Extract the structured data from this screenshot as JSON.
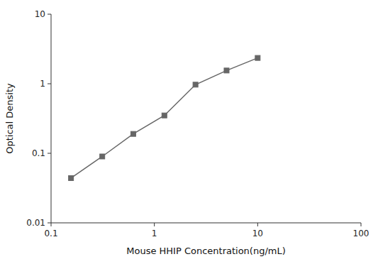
{
  "chart_data": {
    "type": "line",
    "x": [
      0.156,
      0.313,
      0.625,
      1.25,
      2.5,
      5.0,
      10.0
    ],
    "values": [
      0.044,
      0.09,
      0.19,
      0.35,
      0.97,
      1.55,
      2.35
    ],
    "xlabel": "Mouse HHIP Concentration(ng/mL)",
    "ylabel": "Optical Density",
    "xlim": [
      0.1,
      100
    ],
    "ylim": [
      0.01,
      10
    ],
    "xticks": [
      0.1,
      1,
      10,
      100
    ],
    "yticks": [
      0.01,
      0.1,
      1,
      10
    ],
    "log": true,
    "grid": false,
    "color": "#666666",
    "marker": "square"
  }
}
